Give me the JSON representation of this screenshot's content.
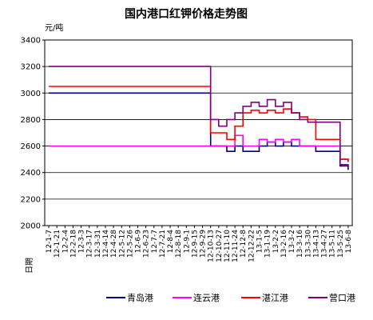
{
  "chart_data": {
    "type": "line",
    "title": "国内港口红钾价格走势图",
    "unit": "元/吨",
    "xlabel": "日期",
    "ylim": [
      2000,
      3400
    ],
    "yticks": [
      2000,
      2200,
      2400,
      2600,
      2800,
      3000,
      3200,
      3400
    ],
    "grid": true,
    "legend_position": "bottom",
    "x_tick_labels": [
      "12-1-7",
      "12-1-21",
      "12-2-4",
      "12-2-18",
      "12-3-3",
      "12-3-17",
      "12-3-31",
      "12-4-14",
      "12-4-28",
      "12-5-12",
      "12-5-26",
      "12-6-9",
      "12-6-23",
      "12-7-7",
      "12-7-21",
      "12-8-4",
      "12-8-18",
      "12-9-1",
      "12-9-15",
      "12-9-29",
      "12-10-13",
      "12-10-27",
      "12-11-10",
      "12-11-24",
      "12-12-8",
      "12-12-22",
      "13-1-5",
      "13-1-19",
      "13-2-2",
      "13-2-16",
      "13-3-2",
      "13-3-16",
      "13-3-30",
      "13-4-13",
      "13-4-27",
      "13-5-11",
      "13-5-25",
      "13-6-8"
    ],
    "series": [
      {
        "name": "青岛港",
        "color": "#000080",
        "x": [
          0,
          20,
          20,
          22,
          22,
          23,
          23,
          24,
          24,
          26,
          26,
          27,
          27,
          28,
          28,
          29,
          29,
          30,
          30,
          31,
          31,
          33,
          33,
          36,
          36,
          37,
          37
        ],
        "y": [
          3000,
          3000,
          2600,
          2600,
          2560,
          2560,
          2600,
          2600,
          2560,
          2560,
          2600,
          2600,
          2630,
          2630,
          2600,
          2600,
          2630,
          2630,
          2600,
          2600,
          2600,
          2600,
          2560,
          2560,
          2450,
          2450,
          2420
        ]
      },
      {
        "name": "连云港",
        "color": "#ff00ff",
        "x": [
          0,
          20,
          20,
          23,
          23,
          24,
          24,
          26,
          26,
          27,
          27,
          28,
          28,
          29,
          29,
          30,
          30,
          31,
          31,
          33,
          33,
          36,
          36,
          37,
          37
        ],
        "y": [
          2600,
          2600,
          2600,
          2600,
          2680,
          2680,
          2600,
          2600,
          2650,
          2650,
          2630,
          2630,
          2650,
          2650,
          2630,
          2630,
          2650,
          2650,
          2600,
          2600,
          2600,
          2600,
          2500,
          2500,
          2480
        ]
      },
      {
        "name": "湛江港",
        "color": "#ff0000",
        "x": [
          0,
          20,
          20,
          21,
          21,
          22,
          22,
          23,
          23,
          24,
          24,
          25,
          25,
          26,
          26,
          27,
          27,
          28,
          28,
          29,
          29,
          30,
          30,
          31,
          31,
          32,
          32,
          33,
          33,
          35,
          35,
          36,
          36,
          37,
          37
        ],
        "y": [
          3050,
          3050,
          2700,
          2700,
          2700,
          2700,
          2650,
          2650,
          2750,
          2750,
          2850,
          2850,
          2870,
          2870,
          2850,
          2850,
          2870,
          2870,
          2850,
          2850,
          2880,
          2880,
          2850,
          2850,
          2820,
          2820,
          2800,
          2800,
          2650,
          2650,
          2650,
          2650,
          2500,
          2500,
          2480
        ]
      },
      {
        "name": "营口港",
        "color": "#800080",
        "x": [
          0,
          20,
          20,
          21,
          21,
          22,
          22,
          23,
          23,
          24,
          24,
          25,
          25,
          26,
          26,
          27,
          27,
          28,
          28,
          29,
          29,
          30,
          30,
          31,
          31,
          32,
          32,
          34,
          34,
          36,
          36,
          37,
          37
        ],
        "y": [
          3200,
          3200,
          2800,
          2800,
          2750,
          2750,
          2800,
          2800,
          2850,
          2850,
          2900,
          2900,
          2930,
          2930,
          2900,
          2900,
          2950,
          2950,
          2900,
          2900,
          2930,
          2930,
          2850,
          2850,
          2800,
          2800,
          2780,
          2780,
          2780,
          2780,
          2460,
          2460,
          2450
        ]
      }
    ]
  }
}
